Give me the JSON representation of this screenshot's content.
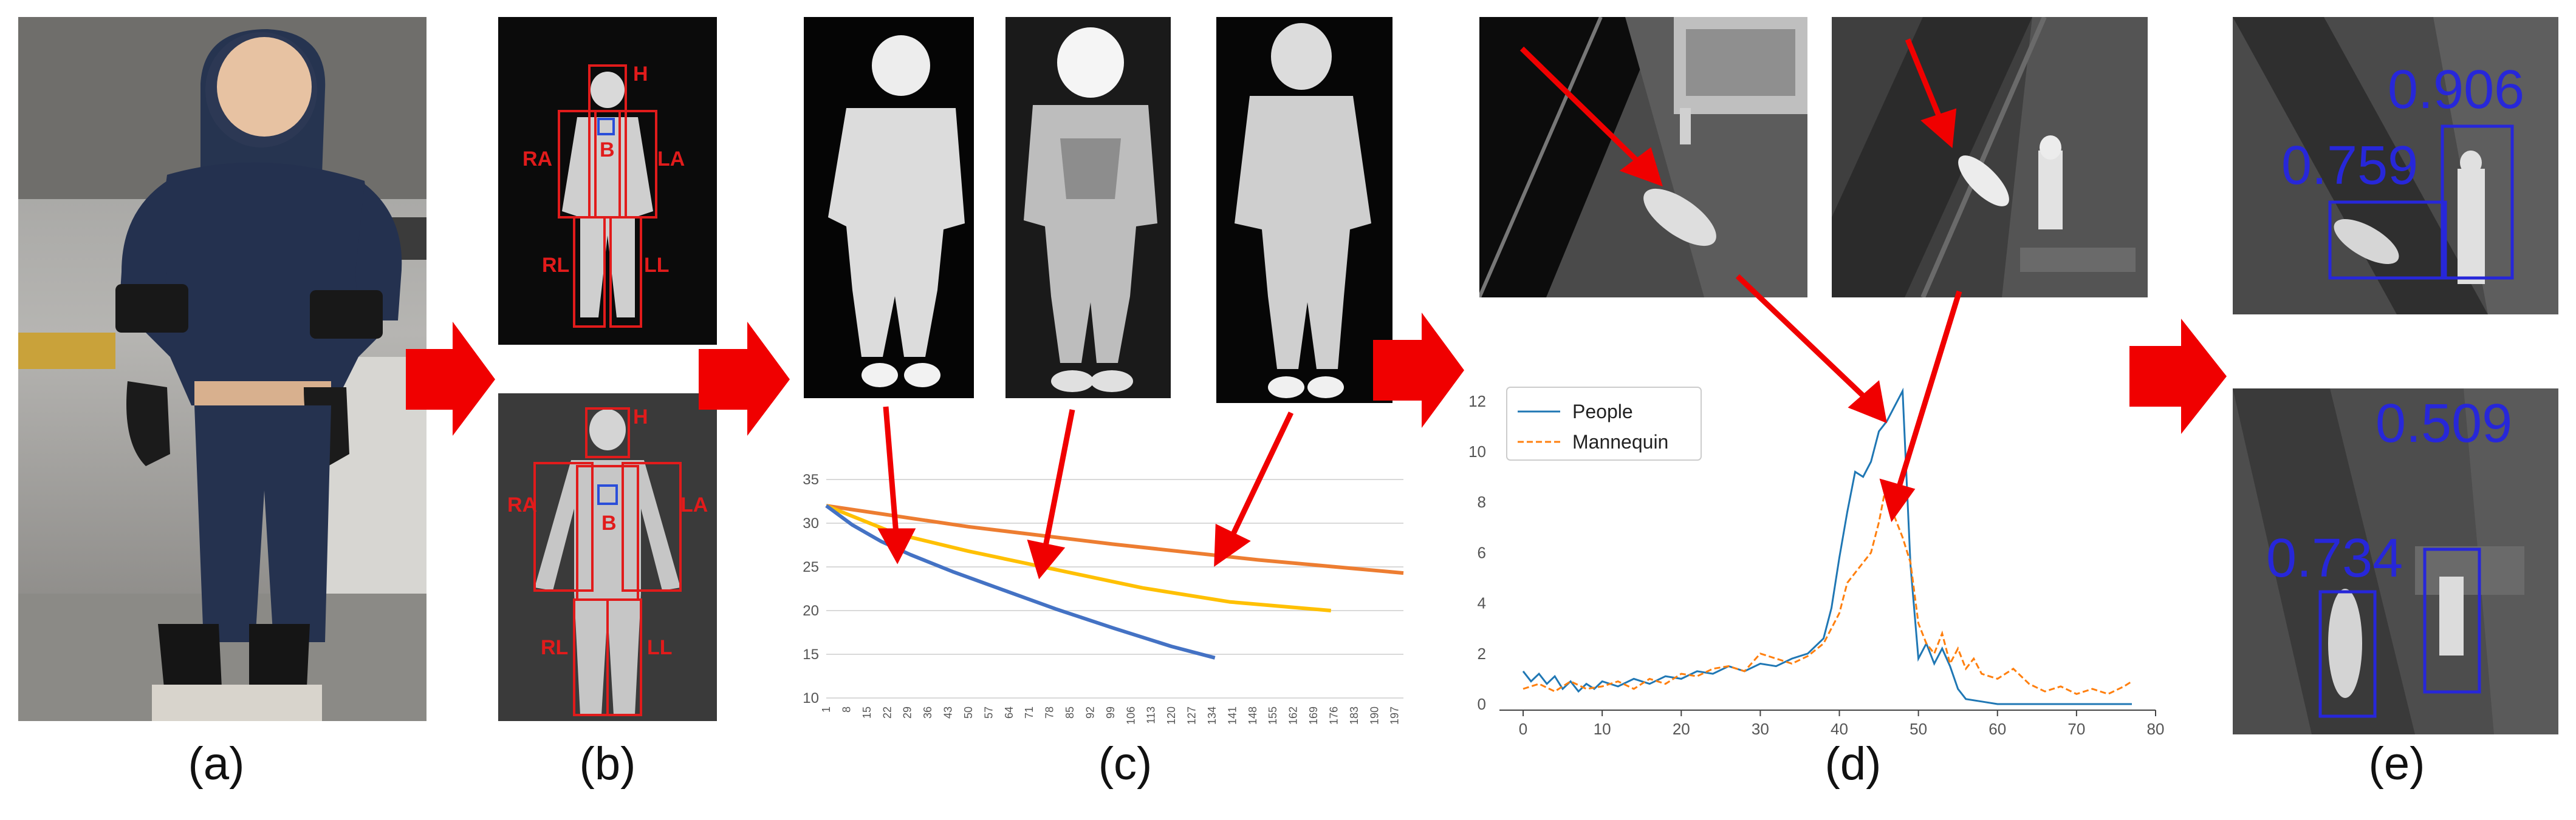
{
  "captions": [
    "(a)",
    "(b)",
    "(c)",
    "(d)",
    "(e)"
  ],
  "body_parts": [
    "H",
    "RA",
    "LA",
    "B",
    "RL",
    "LL"
  ],
  "colors": {
    "arrow": "#f00000",
    "box": "#e11b1b",
    "body_box": "#2a4ed9",
    "detect": "#2727d9",
    "blue_series": "#1f77b4",
    "orange_series": "#ff7f0e"
  },
  "chart_c": {
    "type": "line",
    "ylim": [
      10,
      35
    ],
    "yticks": [
      "10",
      "15",
      "20",
      "25",
      "30",
      "35"
    ],
    "xticks": [
      "1",
      "8",
      "15",
      "22",
      "29",
      "36",
      "43",
      "50",
      "57",
      "64",
      "71",
      "78",
      "85",
      "92",
      "99",
      "106",
      "113",
      "120",
      "127",
      "134",
      "141",
      "148",
      "155",
      "162",
      "169",
      "176",
      "183",
      "190",
      "197"
    ],
    "series": [
      {
        "color": "#ed7d31",
        "x": [
          1,
          50,
          100,
          150,
          200
        ],
        "y": [
          32,
          29.6,
          27.6,
          25.8,
          24.3
        ]
      },
      {
        "color": "#ffc000",
        "x": [
          1,
          25,
          50,
          80,
          110,
          140,
          175
        ],
        "y": [
          32,
          28.8,
          26.8,
          24.7,
          22.6,
          21.0,
          20.0
        ]
      },
      {
        "color": "#4472c4",
        "x": [
          1,
          10,
          20,
          30,
          45,
          60,
          80,
          100,
          120,
          135
        ],
        "y": [
          32,
          29.8,
          27.9,
          26.4,
          24.4,
          22.6,
          20.2,
          18.0,
          15.9,
          14.6
        ]
      }
    ]
  },
  "chart_d": {
    "type": "line",
    "ylim": [
      0,
      12.5
    ],
    "xlim": [
      -3,
      80
    ],
    "yticks": [
      "0",
      "2",
      "4",
      "6",
      "8",
      "10",
      "12"
    ],
    "xticks": [
      "0",
      "10",
      "20",
      "30",
      "40",
      "50",
      "60",
      "70",
      "80"
    ],
    "series": [
      {
        "name": "People",
        "color": "#1f77b4",
        "x": [
          0,
          1,
          2,
          3,
          4,
          5,
          6,
          7,
          8,
          9,
          10,
          12,
          14,
          16,
          18,
          20,
          22,
          24,
          26,
          28,
          30,
          32,
          34,
          36,
          38,
          39,
          40,
          41,
          42,
          43,
          44,
          45,
          46,
          47,
          48,
          49,
          50,
          51,
          52,
          53,
          54,
          55,
          56,
          58,
          60,
          62,
          65,
          70,
          77
        ],
        "y": [
          1.3,
          0.9,
          1.2,
          0.8,
          1.1,
          0.6,
          0.9,
          0.5,
          0.8,
          0.6,
          0.9,
          0.7,
          1.0,
          0.8,
          1.1,
          1.0,
          1.3,
          1.2,
          1.5,
          1.3,
          1.6,
          1.5,
          1.8,
          2.0,
          2.6,
          3.8,
          5.8,
          7.6,
          9.2,
          9.0,
          9.6,
          10.8,
          11.2,
          11.8,
          12.4,
          5.5,
          1.8,
          2.4,
          1.6,
          2.2,
          1.5,
          0.6,
          0.2,
          0.1,
          0,
          0,
          0,
          0,
          0
        ]
      },
      {
        "name": "Mannequin",
        "color": "#ff7f0e",
        "x": [
          0,
          2,
          4,
          6,
          8,
          10,
          12,
          14,
          16,
          18,
          20,
          22,
          24,
          26,
          28,
          30,
          32,
          34,
          36,
          38,
          40,
          41,
          42,
          43,
          44,
          45,
          46,
          47,
          48,
          49,
          50,
          51,
          52,
          53,
          54,
          55,
          56,
          57,
          58,
          60,
          62,
          64,
          66,
          68,
          70,
          72,
          74,
          76,
          77
        ],
        "y": [
          0.6,
          0.8,
          0.5,
          0.9,
          0.6,
          0.7,
          0.9,
          0.6,
          1.0,
          0.8,
          1.2,
          1.1,
          1.4,
          1.5,
          1.3,
          2.0,
          1.8,
          1.6,
          1.9,
          2.4,
          3.6,
          4.8,
          5.2,
          5.6,
          6.0,
          7.2,
          8.8,
          7.4,
          6.6,
          5.6,
          3.2,
          2.4,
          2.0,
          2.8,
          1.6,
          2.2,
          1.4,
          1.8,
          1.2,
          1.0,
          1.4,
          0.8,
          0.5,
          0.7,
          0.4,
          0.6,
          0.4,
          0.7,
          0.9
        ]
      }
    ]
  },
  "detections": {
    "top": [
      "0.906",
      "0.759"
    ],
    "bottom": [
      "0.509",
      "0.734"
    ]
  }
}
